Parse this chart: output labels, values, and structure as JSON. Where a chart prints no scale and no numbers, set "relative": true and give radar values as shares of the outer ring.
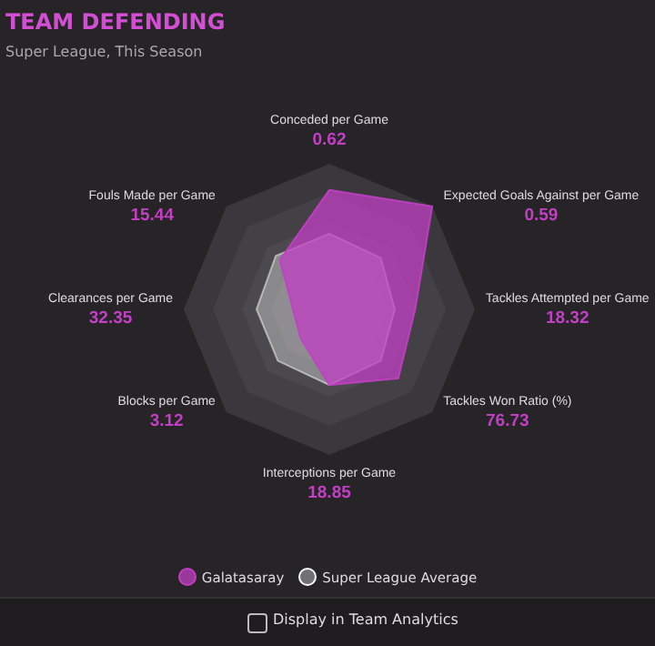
{
  "chart_data": {
    "type": "radar",
    "title": "TEAM DEFENDING",
    "subtitle": "Super League, This Season",
    "relative": true,
    "legend": "bottom",
    "categories": [
      "Conceded per Game",
      "Expected Goals Against per Game",
      "Tackles Attempted per Game",
      "Tackles Won Ratio (%)",
      "Interceptions per Game",
      "Blocks per Game",
      "Clearances per Game",
      "Fouls Made per Game"
    ],
    "series": [
      {
        "name": "Galatasaray",
        "color": "#c23fc4",
        "values": [
          0.82,
          1.0,
          0.59,
          0.67,
          0.52,
          0.28,
          0.25,
          0.48
        ]
      },
      {
        "name": "Super League Average",
        "color": "#ffffff",
        "values": [
          0.52,
          0.5,
          0.45,
          0.5,
          0.52,
          0.5,
          0.5,
          0.52
        ]
      }
    ],
    "annotations": [
      "0.62",
      "0.59",
      "18.32",
      "76.73",
      "18.85",
      "3.12",
      "32.35",
      "15.44",
      "Display in Team Analytics"
    ]
  }
}
